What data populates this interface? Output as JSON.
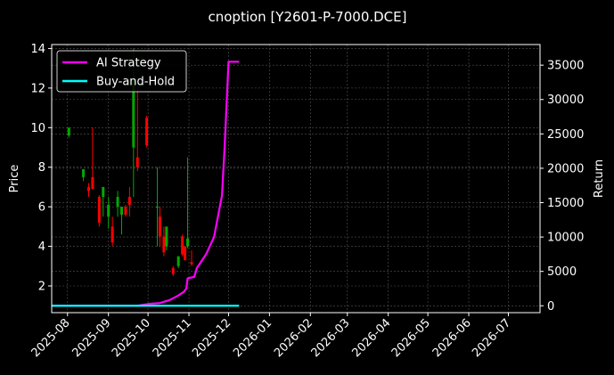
{
  "chart_data": {
    "type": "line",
    "title": "cnoption [Y2601-P-7000.DCE]",
    "xlabel": "",
    "ylabel": "Price",
    "y2label": "Return",
    "x_range": [
      "2025-07-20",
      "2026-07-25"
    ],
    "ylim": [
      0.65,
      14.2
    ],
    "y2lim": [
      -1000,
      38000
    ],
    "x_ticks": [
      "2025-08",
      "2025-09",
      "2025-10",
      "2025-11",
      "2025-12",
      "2026-01",
      "2026-02",
      "2026-03",
      "2026-04",
      "2026-05",
      "2026-06",
      "2026-07"
    ],
    "y_ticks": [
      2,
      4,
      6,
      8,
      10,
      12,
      14
    ],
    "y2_ticks": [
      0,
      5000,
      10000,
      15000,
      20000,
      25000,
      30000,
      35000
    ],
    "grid": true,
    "legend_position": "top-left",
    "colors": {
      "ai_strategy": "#ff00ff",
      "buy_and_hold": "#00ffff",
      "up_candle": "#00aa00",
      "down_candle": "#ff0000",
      "grid": "#555555"
    },
    "series": [
      {
        "name": "AI Strategy",
        "axis": "right",
        "points": [
          [
            "2025-07-20",
            0
          ],
          [
            "2025-09-23",
            0
          ],
          [
            "2025-09-26",
            100
          ],
          [
            "2025-10-03",
            300
          ],
          [
            "2025-10-10",
            400
          ],
          [
            "2025-10-17",
            800
          ],
          [
            "2025-10-20",
            1100
          ],
          [
            "2025-10-24",
            1500
          ],
          [
            "2025-10-28",
            2000
          ],
          [
            "2025-10-30",
            2500
          ],
          [
            "2025-10-31",
            4000
          ],
          [
            "2025-11-05",
            4200
          ],
          [
            "2025-11-07",
            5500
          ],
          [
            "2025-11-14",
            7500
          ],
          [
            "2025-11-20",
            10000
          ],
          [
            "2025-11-26",
            16000
          ],
          [
            "2025-11-28",
            23000
          ],
          [
            "2025-12-01",
            35500
          ],
          [
            "2025-12-09",
            35500
          ]
        ]
      },
      {
        "name": "Buy-and-Hold",
        "axis": "right",
        "points": [
          [
            "2025-07-20",
            0
          ],
          [
            "2025-12-09",
            0
          ]
        ]
      }
    ],
    "candles": [
      {
        "date": "2025-08-02",
        "open": 9.6,
        "high": 10.0,
        "low": 9.5,
        "close": 10.0
      },
      {
        "date": "2025-08-13",
        "open": 7.5,
        "high": 7.9,
        "low": 7.3,
        "close": 7.9
      },
      {
        "date": "2025-08-17",
        "open": 7.0,
        "high": 7.2,
        "low": 6.5,
        "close": 6.8
      },
      {
        "date": "2025-08-20",
        "open": 7.5,
        "high": 10.0,
        "low": 6.9,
        "close": 6.9
      },
      {
        "date": "2025-08-25",
        "open": 6.5,
        "high": 6.6,
        "low": 5.0,
        "close": 5.2
      },
      {
        "date": "2025-08-28",
        "open": 6.5,
        "high": 7.0,
        "low": 5.5,
        "close": 7.0
      },
      {
        "date": "2025-09-01",
        "open": 5.5,
        "high": 6.5,
        "low": 4.9,
        "close": 6.1
      },
      {
        "date": "2025-09-04",
        "open": 5.0,
        "high": 5.5,
        "low": 4.0,
        "close": 4.2
      },
      {
        "date": "2025-09-08",
        "open": 6.0,
        "high": 6.8,
        "low": 5.5,
        "close": 6.5
      },
      {
        "date": "2025-09-11",
        "open": 5.6,
        "high": 6.0,
        "low": 4.6,
        "close": 6.0
      },
      {
        "date": "2025-09-14",
        "open": 6.0,
        "high": 6.1,
        "low": 5.5,
        "close": 5.6
      },
      {
        "date": "2025-09-17",
        "open": 6.5,
        "high": 7.0,
        "low": 5.5,
        "close": 6.1
      },
      {
        "date": "2025-09-20",
        "open": 9.0,
        "high": 14.0,
        "low": 6.5,
        "close": 12.5
      },
      {
        "date": "2025-09-23",
        "open": 8.5,
        "high": 12.0,
        "low": 7.8,
        "close": 8.0
      },
      {
        "date": "2025-09-30",
        "open": 10.5,
        "high": 10.6,
        "low": 9.0,
        "close": 9.1
      },
      {
        "date": "2025-10-08",
        "open": 6.0,
        "high": 8.0,
        "low": 4.0,
        "close": 6.0
      },
      {
        "date": "2025-10-10",
        "open": 5.5,
        "high": 6.0,
        "low": 4.0,
        "close": 4.5
      },
      {
        "date": "2025-10-13",
        "open": 4.5,
        "high": 5.0,
        "low": 3.5,
        "close": 3.7
      },
      {
        "date": "2025-10-15",
        "open": 4.0,
        "high": 5.0,
        "low": 3.8,
        "close": 5.0
      },
      {
        "date": "2025-10-20",
        "open": 2.9,
        "high": 3.0,
        "low": 2.5,
        "close": 2.6
      },
      {
        "date": "2025-10-24",
        "open": 3.0,
        "high": 3.5,
        "low": 2.9,
        "close": 3.5
      },
      {
        "date": "2025-10-27",
        "open": 4.5,
        "high": 4.6,
        "low": 3.5,
        "close": 3.6
      },
      {
        "date": "2025-10-29",
        "open": 4.0,
        "high": 4.0,
        "low": 3.3,
        "close": 3.3
      },
      {
        "date": "2025-10-31",
        "open": 4.0,
        "high": 8.5,
        "low": 3.9,
        "close": 4.4
      },
      {
        "date": "2025-11-03",
        "open": 3.2,
        "high": 3.8,
        "low": 3.0,
        "close": 3.1
      }
    ]
  }
}
